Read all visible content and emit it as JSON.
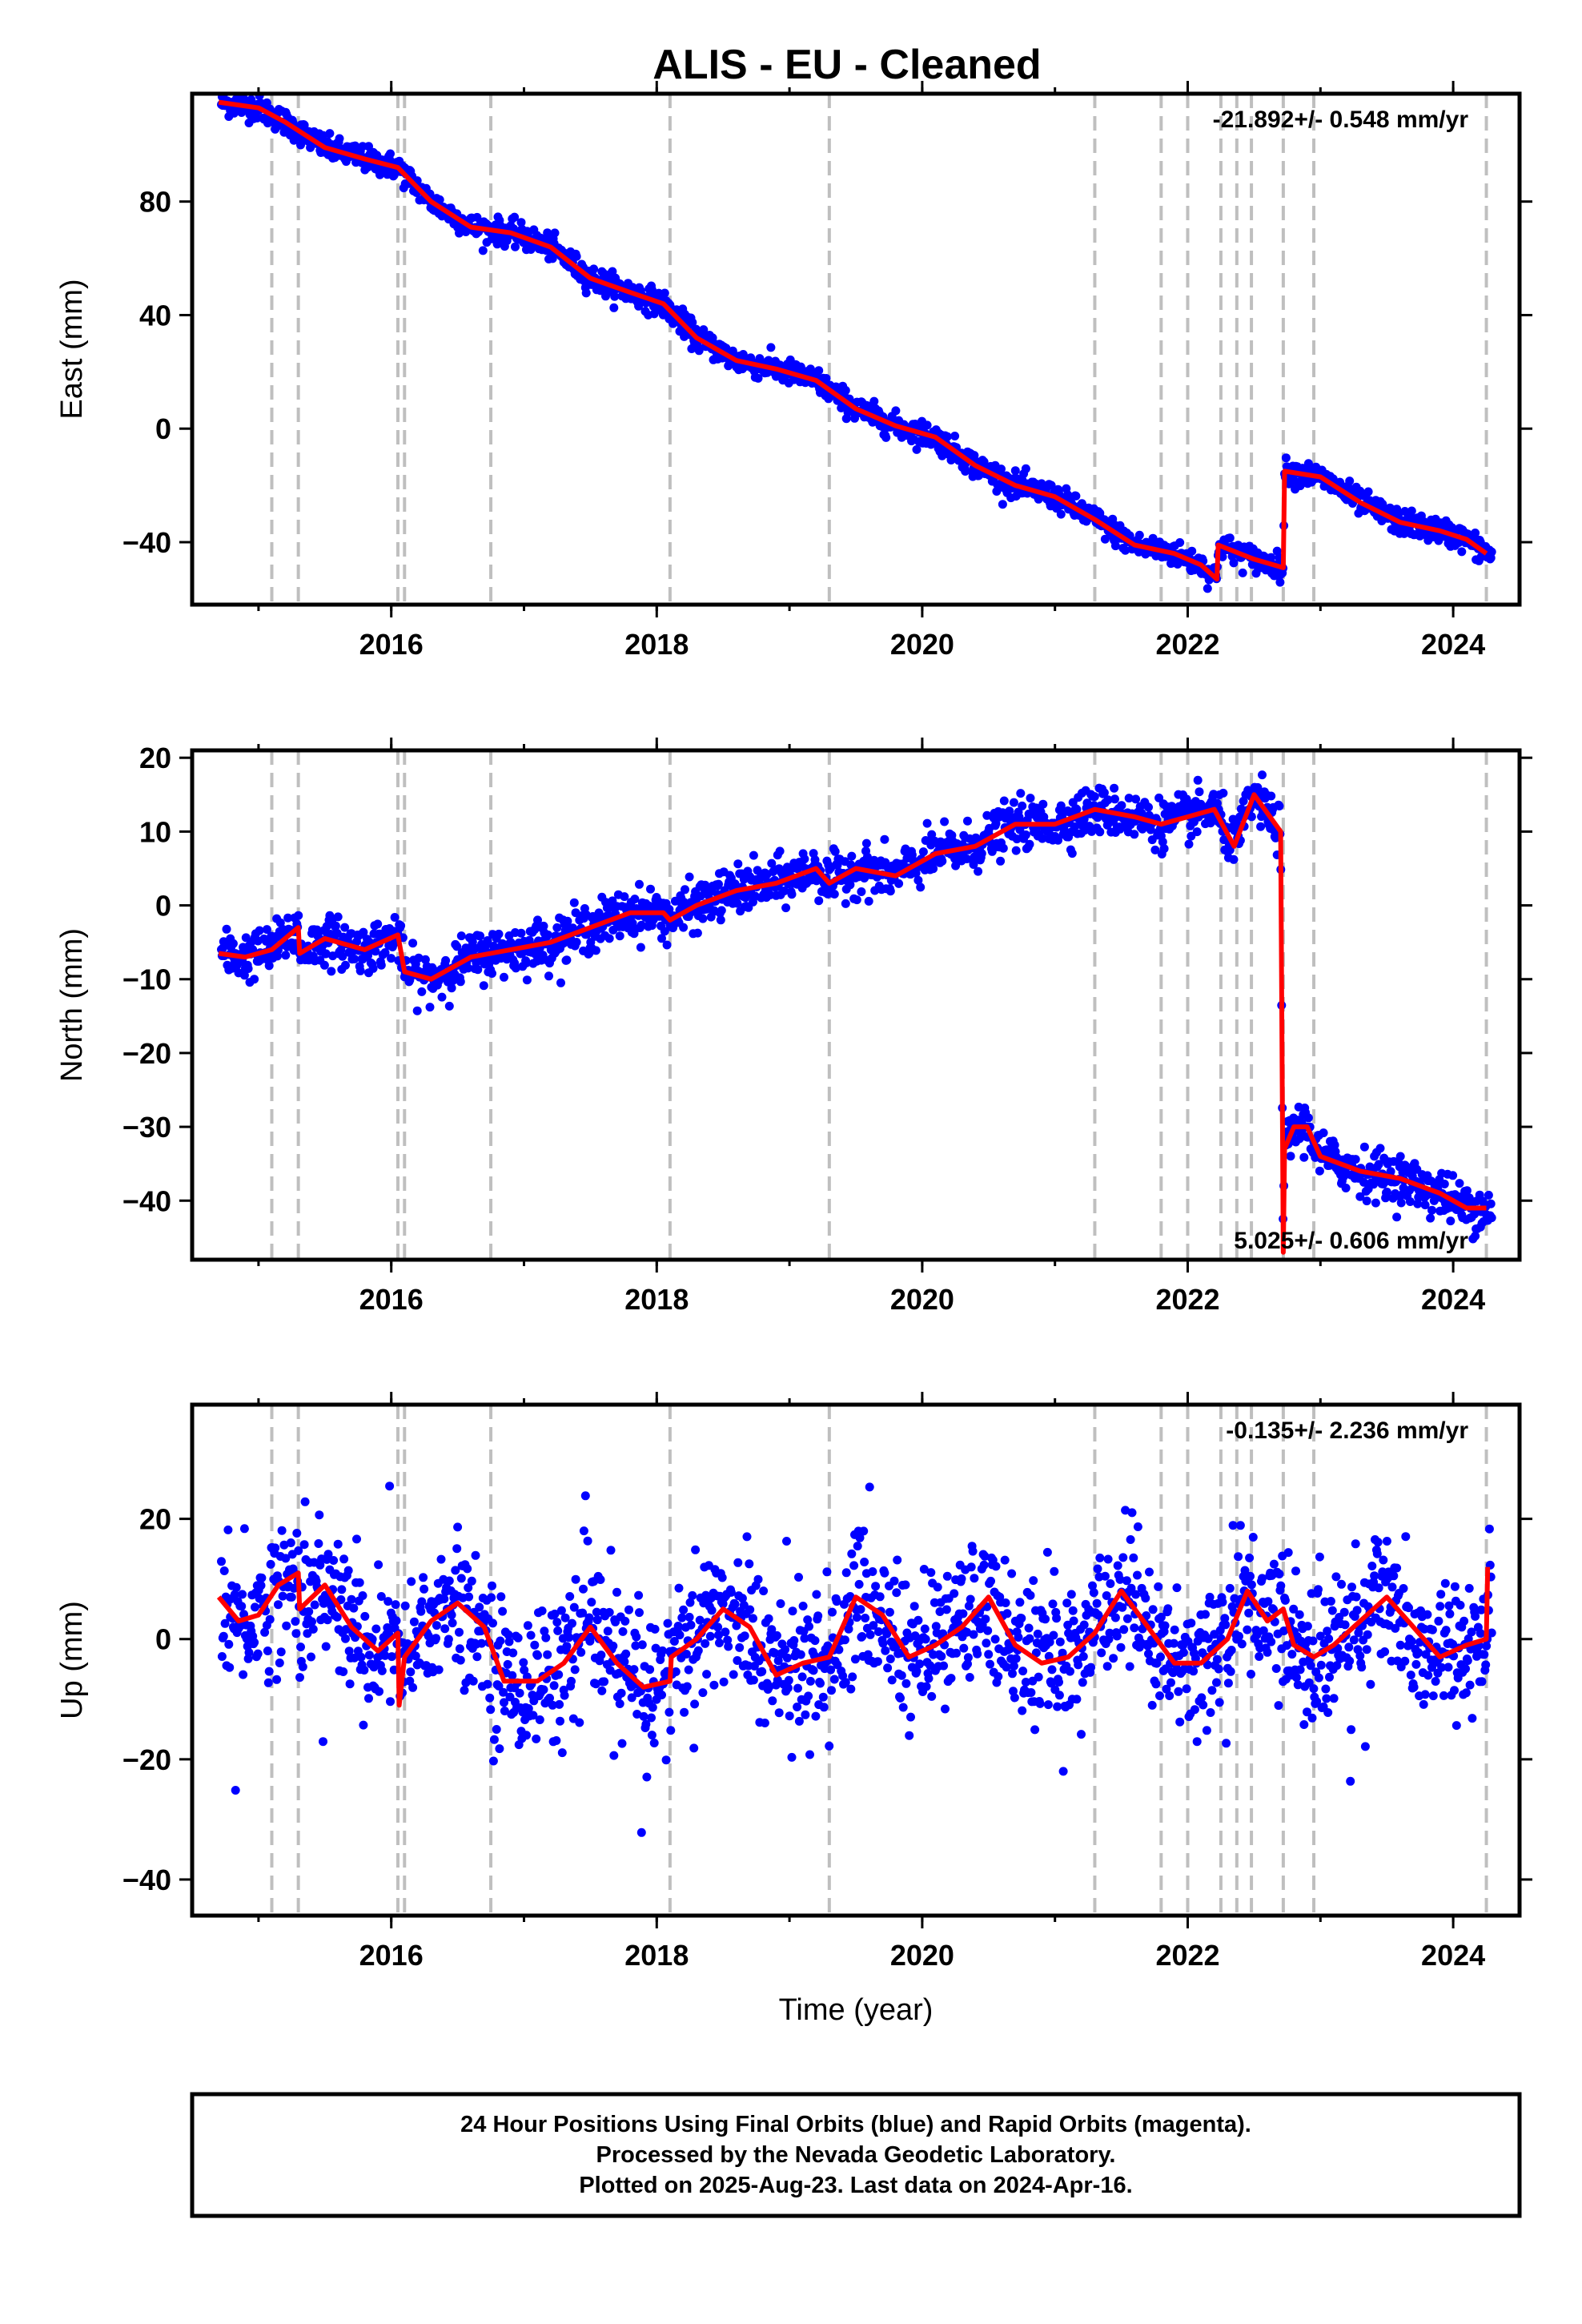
{
  "title": "ALIS  - EU - Cleaned",
  "footer": {
    "line1": "24 Hour Positions Using Final Orbits (blue) and Rapid Orbits (magenta).",
    "line2": "Processed by the Nevada Geodetic Laboratory.",
    "line3": "Plotted on 2025-Aug-23. Last data on 2024-Apr-16."
  },
  "colors": {
    "points": "#0000ff",
    "model": "#ff0000",
    "event_lines": "#bfbfbf",
    "frame": "#000000"
  },
  "chart_data": [
    {
      "type": "scatter",
      "ylabel": "East (mm)",
      "xlabel": "",
      "rate_label": "-21.892+/- 0.548 mm/yr",
      "xlim": [
        2014.5,
        2024.5
      ],
      "ylim": [
        -62,
        118
      ],
      "xticks": [
        2016,
        2018,
        2020,
        2022,
        2024
      ],
      "yticks": [
        -40,
        0,
        40,
        80
      ],
      "event_lines": [
        2015.1,
        2015.3,
        2016.05,
        2016.1,
        2016.75,
        2018.1,
        2019.3,
        2021.3,
        2021.8,
        2022.0,
        2022.25,
        2022.37,
        2022.48,
        2022.72,
        2022.95,
        2024.25
      ],
      "series": [
        {
          "role": "model",
          "x": [
            2014.7,
            2015.0,
            2015.2,
            2015.5,
            2015.8,
            2016.05,
            2016.3,
            2016.6,
            2016.9,
            2017.2,
            2017.5,
            2017.8,
            2018.05,
            2018.3,
            2018.6,
            2018.9,
            2019.2,
            2019.5,
            2019.8,
            2020.1,
            2020.4,
            2020.7,
            2021.0,
            2021.3,
            2021.6,
            2021.9,
            2022.1,
            2022.22,
            2022.23,
            2022.5,
            2022.72,
            2022.73,
            2023.0,
            2023.3,
            2023.6,
            2023.9,
            2024.1,
            2024.25
          ],
          "y": [
            115,
            113,
            108,
            99,
            95,
            92,
            80,
            71,
            69,
            64,
            53,
            48,
            44,
            32,
            24,
            21,
            17,
            7,
            1,
            -3,
            -13,
            -20,
            -24,
            -32,
            -41,
            -44,
            -48,
            -53,
            -41,
            -46,
            -49,
            -15,
            -17,
            -26,
            -33,
            -36,
            -39,
            -44
          ]
        }
      ],
      "point_cloud": {
        "noise_mm": 2.2,
        "start": 2014.72,
        "end": 2024.29,
        "gaps": []
      }
    },
    {
      "type": "scatter",
      "ylabel": "North (mm)",
      "xlabel": "",
      "rate_label": "5.025+/- 0.606 mm/yr",
      "xlim": [
        2014.5,
        2024.5
      ],
      "ylim": [
        -48,
        21
      ],
      "xticks": [
        2016,
        2018,
        2020,
        2022,
        2024
      ],
      "yticks": [
        -40,
        -30,
        -20,
        -10,
        0,
        10,
        20
      ],
      "event_lines": [
        2015.1,
        2015.3,
        2016.05,
        2016.1,
        2016.75,
        2018.1,
        2019.3,
        2021.3,
        2021.8,
        2022.0,
        2022.25,
        2022.37,
        2022.48,
        2022.72,
        2022.95,
        2024.25
      ],
      "series": [
        {
          "role": "model",
          "x": [
            2014.7,
            2014.9,
            2015.1,
            2015.3,
            2015.31,
            2015.5,
            2015.8,
            2016.05,
            2016.1,
            2016.3,
            2016.6,
            2016.9,
            2017.2,
            2017.5,
            2017.8,
            2018.05,
            2018.1,
            2018.3,
            2018.6,
            2018.9,
            2019.2,
            2019.3,
            2019.5,
            2019.8,
            2020.1,
            2020.4,
            2020.7,
            2021.0,
            2021.3,
            2021.6,
            2021.8,
            2022.0,
            2022.2,
            2022.35,
            2022.5,
            2022.7,
            2022.72,
            2022.73,
            2022.8,
            2022.9,
            2023.0,
            2023.3,
            2023.6,
            2023.9,
            2024.1,
            2024.25
          ],
          "y": [
            -6.5,
            -7,
            -6,
            -3,
            -6.5,
            -4.5,
            -6,
            -4,
            -9,
            -10,
            -7,
            -6,
            -5,
            -3,
            -1,
            -1,
            -2,
            0,
            2,
            3,
            5,
            3,
            5,
            4,
            7,
            8,
            11,
            11,
            13,
            12,
            11,
            12,
            13,
            8,
            15,
            10,
            -47,
            -33,
            -30,
            -30,
            -34,
            -36,
            -37,
            -39,
            -41,
            -41
          ]
        }
      ],
      "point_cloud": {
        "noise_mm": 1.6,
        "start": 2014.72,
        "end": 2024.29,
        "gaps": []
      }
    },
    {
      "type": "scatter",
      "ylabel": "Up (mm)",
      "xlabel": "Time (year)",
      "rate_label": "-0.135+/- 2.236 mm/yr",
      "xlim": [
        2014.5,
        2024.5
      ],
      "ylim": [
        -46,
        39
      ],
      "xticks": [
        2016,
        2018,
        2020,
        2022,
        2024
      ],
      "yticks": [
        -40,
        -20,
        0,
        20
      ],
      "event_lines": [
        2015.1,
        2015.3,
        2016.05,
        2016.1,
        2016.75,
        2018.1,
        2019.3,
        2021.3,
        2021.8,
        2022.0,
        2022.25,
        2022.37,
        2022.48,
        2022.72,
        2022.95,
        2024.25
      ],
      "series": [
        {
          "role": "model",
          "x": [
            2014.7,
            2014.85,
            2015.0,
            2015.15,
            2015.3,
            2015.31,
            2015.5,
            2015.7,
            2015.9,
            2016.05,
            2016.06,
            2016.1,
            2016.3,
            2016.5,
            2016.7,
            2016.85,
            2017.1,
            2017.3,
            2017.5,
            2017.7,
            2017.9,
            2018.1,
            2018.11,
            2018.3,
            2018.5,
            2018.7,
            2018.9,
            2019.1,
            2019.3,
            2019.5,
            2019.7,
            2019.9,
            2020.1,
            2020.3,
            2020.5,
            2020.7,
            2020.9,
            2021.1,
            2021.3,
            2021.5,
            2021.7,
            2021.9,
            2022.1,
            2022.3,
            2022.45,
            2022.6,
            2022.72,
            2022.8,
            2022.95,
            2023.1,
            2023.3,
            2023.5,
            2023.7,
            2023.9,
            2024.1,
            2024.25,
            2024.26
          ],
          "y": [
            7,
            3,
            4,
            9,
            11,
            5,
            9,
            2,
            -2,
            1,
            -11,
            -3,
            3,
            6,
            2,
            -7,
            -7,
            -4,
            2,
            -4,
            -8,
            -7,
            -3,
            0,
            5,
            2,
            -6,
            -4,
            -3,
            7,
            4,
            -3,
            -1,
            2,
            7,
            -1,
            -4,
            -3,
            1,
            8,
            2,
            -4,
            -4,
            0,
            8,
            3,
            5,
            -1,
            -3,
            -1,
            3,
            7,
            2,
            -3,
            -1,
            0,
            12
          ]
        }
      ],
      "point_cloud": {
        "noise_mm": 6.0,
        "start": 2014.72,
        "end": 2024.29,
        "gaps": []
      }
    }
  ]
}
